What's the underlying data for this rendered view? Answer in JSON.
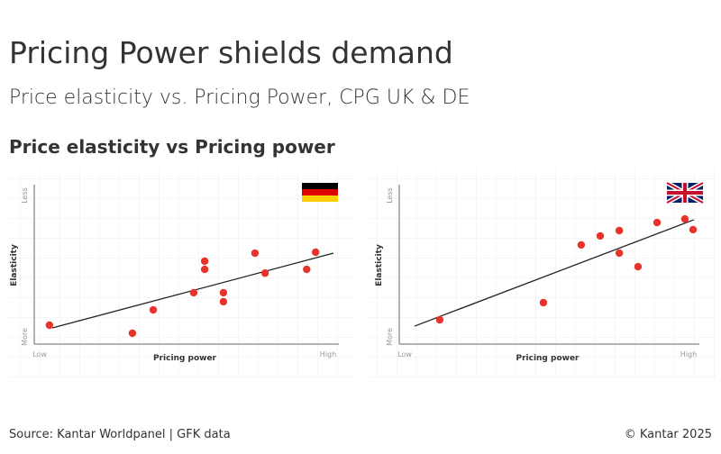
{
  "title": "Pricing Power shields demand",
  "subtitle": "Price elasticity vs. Pricing Power, CPG UK & DE",
  "section_title": "Price elasticity vs Pricing power",
  "source": "Source: Kantar Worldpanel | GFK data",
  "copyright": "© Kantar 2025",
  "chart_data": [
    {
      "type": "scatter",
      "xlabel": "Pricing power",
      "ylabel": "Elasticity",
      "color": "#e8332a",
      "xlim": [
        0,
        100
      ],
      "ylim": [
        0,
        100
      ],
      "xticks": [
        {
          "value": 0,
          "label": "Low"
        },
        {
          "value": 100,
          "label": "High"
        }
      ],
      "yticks": [
        {
          "value": 0,
          "label": "More"
        },
        {
          "value": 100,
          "label": "Less"
        }
      ],
      "x": [
        4.5,
        32.4,
        39.4,
        53,
        56.7,
        56.7,
        63,
        63,
        73.6,
        77,
        91,
        94
      ],
      "y": [
        12,
        6.9,
        21.7,
        32.6,
        52.6,
        47.4,
        32.6,
        26.9,
        57.7,
        45,
        47.4,
        58.3
      ],
      "trendline": {
        "x": [
          5.5,
          100
        ],
        "y": [
          10.3,
          57.7
        ]
      }
    },
    {
      "type": "scatter",
      "xlabel": "Pricing power",
      "ylabel": "Elasticity",
      "color": "#e8332a",
      "xlim": [
        0,
        100
      ],
      "ylim": [
        0,
        100
      ],
      "xticks": [
        {
          "value": 0,
          "label": "Low"
        },
        {
          "value": 100,
          "label": "High"
        }
      ],
      "yticks": [
        {
          "value": 0,
          "label": "More"
        },
        {
          "value": 100,
          "label": "Less"
        }
      ],
      "x": [
        13.2,
        48.6,
        61.5,
        68,
        74.5,
        74.5,
        80.9,
        87.4,
        96.9,
        99.7
      ],
      "y": [
        15.4,
        26.3,
        62.9,
        68.6,
        72,
        57.7,
        49.1,
        77.1,
        79.4,
        72.6
      ],
      "trendline": {
        "x": [
          4.6,
          100
        ],
        "y": [
          11.4,
          78.9
        ]
      }
    }
  ]
}
